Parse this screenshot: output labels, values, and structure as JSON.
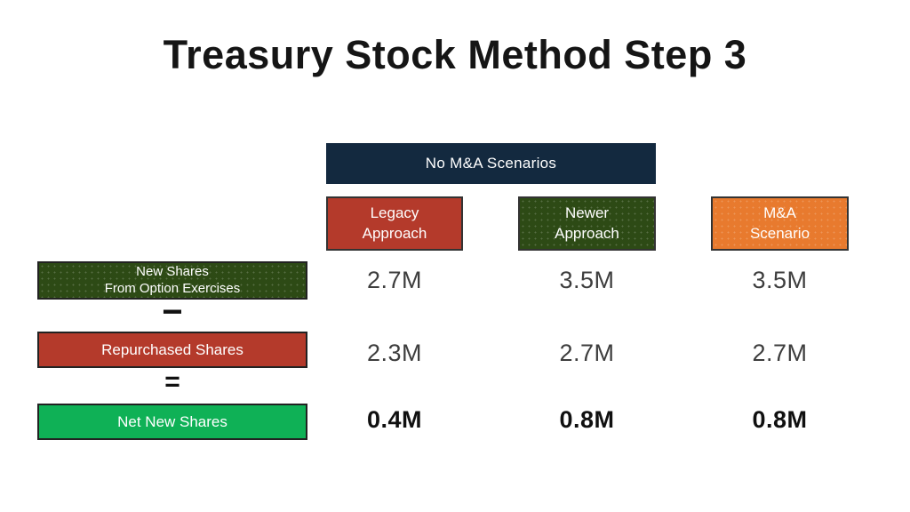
{
  "title": "Treasury Stock Method Step 3",
  "table": {
    "group_header": "No M&A Scenarios",
    "columns": [
      {
        "label": "Legacy Approach",
        "lines": [
          "Legacy",
          "Approach"
        ],
        "color": "#B43A2B"
      },
      {
        "label": "Newer Approach",
        "lines": [
          "Newer",
          "Approach"
        ],
        "color": "#2D4A15"
      },
      {
        "label": "M&A Scenario",
        "lines": [
          "M&A",
          "Scenario"
        ],
        "color": "#E87A2E"
      }
    ],
    "rows": [
      {
        "label": "New Shares From Option Exercises",
        "lines": [
          "New Shares",
          "From Option Exercises"
        ],
        "color": "#2D4A15",
        "values": [
          "2.7M",
          "3.5M",
          "3.5M"
        ],
        "emphasis": false
      },
      {
        "label": "Repurchased Shares",
        "lines": [
          "Repurchased Shares"
        ],
        "color": "#B43A2B",
        "values": [
          "2.3M",
          "2.7M",
          "2.7M"
        ],
        "emphasis": false
      },
      {
        "label": "Net New Shares",
        "lines": [
          "Net New Shares"
        ],
        "color": "#0FB156",
        "values": [
          "0.4M",
          "0.8M",
          "0.8M"
        ],
        "emphasis": true
      }
    ],
    "operators": {
      "minus": "−",
      "equals": "="
    }
  },
  "chart_data": {
    "type": "table",
    "title": "Treasury Stock Method Step 3",
    "group_header": "No M&A Scenarios",
    "columns": [
      "Legacy Approach",
      "Newer Approach",
      "M&A Scenario"
    ],
    "rows": [
      {
        "label": "New Shares From Option Exercises",
        "values": [
          "2.7M",
          "3.5M",
          "3.5M"
        ]
      },
      {
        "label": "Repurchased Shares",
        "values": [
          "2.3M",
          "2.7M",
          "2.7M"
        ]
      },
      {
        "label": "Net New Shares",
        "values": [
          "0.4M",
          "0.8M",
          "0.8M"
        ]
      }
    ],
    "operators_between_rows": [
      "−",
      "="
    ]
  },
  "colors": {
    "background": "#FFFFFF",
    "group_header_bg": "#13293F",
    "legacy_bg": "#B43A2B",
    "newer_bg": "#2D4A15",
    "mna_bg": "#E87A2E",
    "net_new_bg": "#0FB156",
    "value_text": "#3D3D3D",
    "emphasis_text": "#101010",
    "title_text": "#151515"
  }
}
